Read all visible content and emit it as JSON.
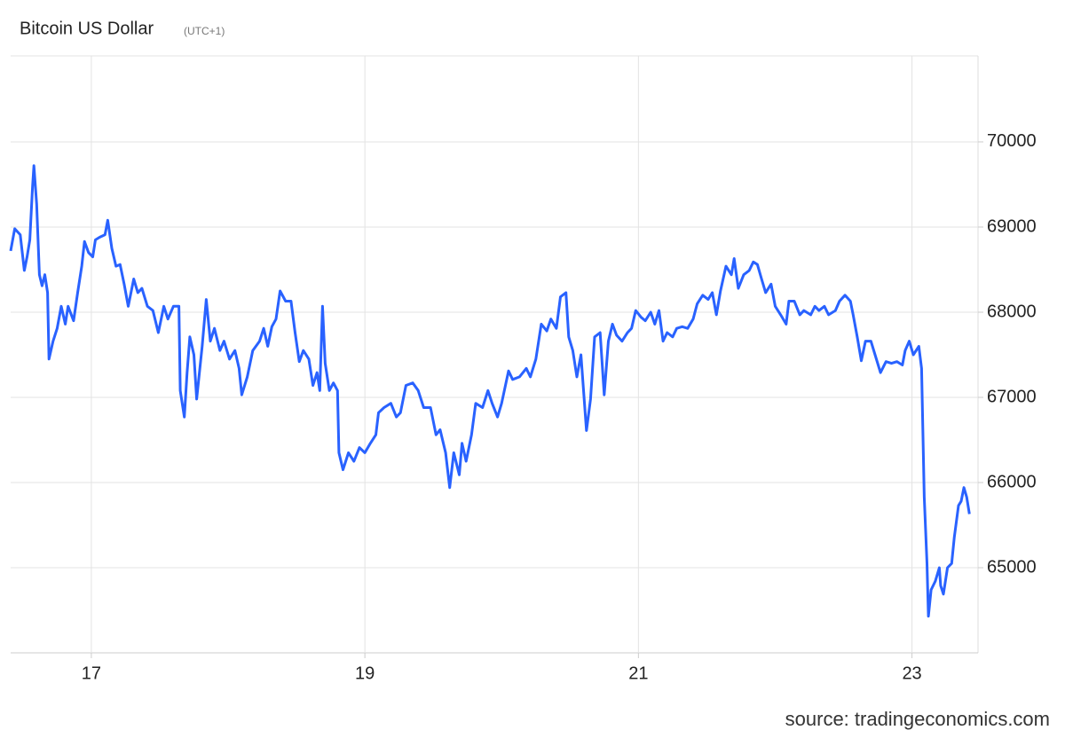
{
  "chart_data": {
    "type": "line",
    "title": "Bitcoin US Dollar",
    "subtitle": "(UTC+1)",
    "source": "source: tradingeconomics.com",
    "color": "#2962ff",
    "grid": true,
    "xlim": [
      16.41,
      23.47
    ],
    "xticks": [
      17,
      19,
      21,
      23
    ],
    "ylim": [
      64000,
      71010
    ],
    "yticks": [
      65000,
      66000,
      67000,
      68000,
      69000,
      70000
    ],
    "x": [
      16.41,
      16.44,
      16.48,
      16.51,
      16.53,
      16.55,
      16.57,
      16.58,
      16.6,
      16.62,
      16.64,
      16.66,
      16.68,
      16.69,
      16.72,
      16.75,
      16.78,
      16.81,
      16.83,
      16.87,
      16.9,
      16.93,
      16.95,
      16.98,
      17.01,
      17.03,
      17.06,
      17.1,
      17.12,
      17.15,
      17.18,
      17.21,
      17.24,
      17.27,
      17.31,
      17.34,
      17.37,
      17.41,
      17.45,
      17.49,
      17.53,
      17.56,
      17.6,
      17.64,
      17.65,
      17.68,
      17.7,
      17.72,
      17.75,
      17.77,
      17.81,
      17.84,
      17.87,
      17.9,
      17.94,
      17.97,
      18.01,
      18.05,
      18.08,
      18.1,
      18.14,
      18.18,
      18.23,
      18.26,
      18.29,
      18.32,
      18.35,
      18.38,
      18.42,
      18.46,
      18.49,
      18.52,
      18.55,
      18.59,
      18.62,
      18.65,
      18.67,
      18.69,
      18.71,
      18.74,
      18.77,
      18.8,
      18.81,
      18.84,
      18.88,
      18.92,
      18.96,
      19.0,
      19.04,
      19.08,
      19.1,
      19.14,
      19.19,
      19.23,
      19.26,
      19.3,
      19.35,
      19.39,
      19.43,
      19.48,
      19.52,
      19.55,
      19.59,
      19.62,
      19.65,
      19.69,
      19.71,
      19.74,
      19.78,
      19.81,
      19.86,
      19.9,
      19.93,
      19.97,
      20.0,
      20.05,
      20.08,
      20.13,
      20.18,
      20.21,
      20.25,
      20.29,
      20.33,
      20.36,
      20.4,
      20.43,
      20.47,
      20.49,
      20.52,
      20.55,
      20.58,
      20.62,
      20.65,
      20.68,
      20.72,
      20.75,
      20.78,
      20.81,
      20.84,
      20.88,
      20.92,
      20.95,
      20.98,
      21.02,
      21.05,
      21.09,
      21.12,
      21.15,
      21.18,
      21.21,
      21.25,
      21.28,
      21.32,
      21.36,
      21.4,
      21.43,
      21.47,
      21.51,
      21.54,
      21.57,
      21.6,
      21.64,
      21.68,
      21.7,
      21.73,
      21.77,
      21.81,
      21.84,
      21.87,
      21.9,
      21.93,
      21.97,
      22.0,
      22.04,
      22.08,
      22.1,
      22.14,
      22.18,
      22.21,
      22.26,
      22.29,
      22.32,
      22.36,
      22.39,
      22.44,
      22.47,
      22.51,
      22.55,
      22.57,
      22.6,
      22.63,
      22.66,
      22.7,
      22.73,
      22.77,
      22.81,
      22.85,
      22.89,
      22.93,
      22.95,
      22.98,
      23.01,
      23.05,
      23.07,
      23.09,
      23.11,
      23.12,
      23.14,
      23.17,
      23.2,
      23.21,
      23.23,
      23.26,
      23.29,
      23.31,
      23.34,
      23.36,
      23.38,
      23.4,
      23.42
    ],
    "values": [
      68720,
      68980,
      68910,
      68490,
      68650,
      68850,
      69480,
      69720,
      69270,
      68440,
      68310,
      68440,
      68230,
      67450,
      67660,
      67810,
      68070,
      67860,
      68070,
      67900,
      68230,
      68540,
      68830,
      68700,
      68650,
      68850,
      68880,
      68910,
      69080,
      68750,
      68540,
      68560,
      68330,
      68070,
      68390,
      68230,
      68280,
      68070,
      68020,
      67760,
      68070,
      67920,
      68070,
      68070,
      67080,
      66770,
      67290,
      67710,
      67500,
      66980,
      67600,
      68150,
      67660,
      67810,
      67550,
      67660,
      67450,
      67550,
      67340,
      67030,
      67240,
      67550,
      67660,
      67810,
      67600,
      67830,
      67920,
      68250,
      68130,
      68130,
      67760,
      67420,
      67550,
      67450,
      67140,
      67290,
      67080,
      68070,
      67400,
      67080,
      67170,
      67080,
      66350,
      66150,
      66350,
      66250,
      66410,
      66350,
      66460,
      66560,
      66820,
      66880,
      66930,
      66770,
      66820,
      67140,
      67170,
      67080,
      66880,
      66880,
      66560,
      66620,
      66350,
      65940,
      66350,
      66090,
      66460,
      66250,
      66560,
      66930,
      66880,
      67080,
      66930,
      66770,
      66930,
      67310,
      67210,
      67240,
      67340,
      67240,
      67450,
      67860,
      67780,
      67920,
      67810,
      68180,
      68230,
      67710,
      67550,
      67240,
      67500,
      66610,
      66980,
      67710,
      67760,
      67030,
      67660,
      67860,
      67730,
      67660,
      67760,
      67810,
      68020,
      67940,
      67900,
      68000,
      67860,
      68020,
      67660,
      67760,
      67710,
      67810,
      67830,
      67810,
      67920,
      68100,
      68200,
      68150,
      68230,
      67970,
      68250,
      68540,
      68440,
      68630,
      68280,
      68440,
      68490,
      68590,
      68560,
      68390,
      68230,
      68330,
      68070,
      67970,
      67860,
      68130,
      68130,
      67970,
      68020,
      67970,
      68070,
      68020,
      68070,
      67970,
      68020,
      68130,
      68200,
      68130,
      67970,
      67710,
      67430,
      67660,
      67660,
      67500,
      67290,
      67420,
      67400,
      67420,
      67380,
      67550,
      67660,
      67500,
      67600,
      67340,
      65830,
      65050,
      64430,
      64740,
      64840,
      65000,
      64790,
      64690,
      65000,
      65050,
      65360,
      65730,
      65780,
      65940,
      65830,
      65630
    ]
  }
}
